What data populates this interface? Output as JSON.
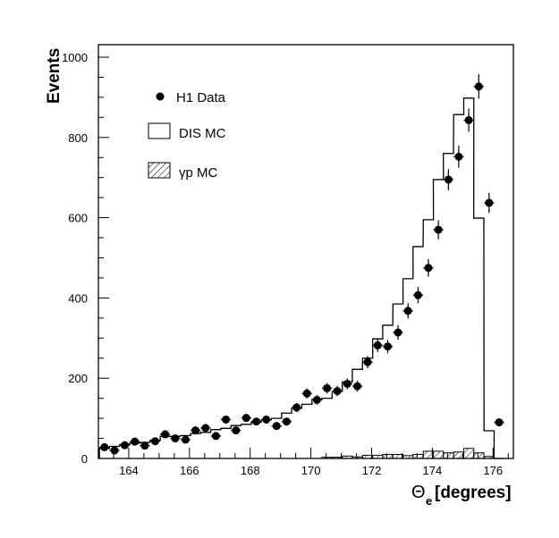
{
  "chart_data": {
    "type": "histogram",
    "xlabel": "Θ",
    "xlabel_sub": "e",
    "xlabel_unit": "[degrees]",
    "ylabel": "Events",
    "xlim": [
      163.0,
      176.67
    ],
    "ylim": [
      0,
      1000
    ],
    "xticks": [
      "164",
      "166",
      "168",
      "170",
      "172",
      "174",
      "176"
    ],
    "yticks": [
      "0",
      "200",
      "400",
      "600",
      "800",
      "1000"
    ],
    "bin_width": 0.333,
    "bin_centers": [
      163.2,
      163.53,
      163.87,
      164.2,
      164.53,
      164.87,
      165.2,
      165.53,
      165.87,
      166.2,
      166.53,
      166.87,
      167.2,
      167.53,
      167.87,
      168.2,
      168.53,
      168.87,
      169.2,
      169.53,
      169.87,
      170.2,
      170.53,
      170.87,
      171.2,
      171.53,
      171.87,
      172.2,
      172.53,
      172.87,
      173.2,
      173.53,
      173.87,
      174.2,
      174.53,
      174.87,
      175.2,
      175.53,
      175.87,
      176.2
    ],
    "series": [
      {
        "name": "H1 Data",
        "style": "points",
        "values": [
          28,
          20,
          33,
          42,
          32,
          43,
          60,
          50,
          47,
          70,
          76,
          56,
          97,
          70,
          101,
          92,
          97,
          81,
          92,
          127,
          162,
          146,
          175,
          168,
          186,
          180,
          240,
          282,
          279,
          314,
          368,
          407,
          475,
          570,
          695,
          752,
          843,
          927,
          637,
          90
        ]
      },
      {
        "name": "DIS MC",
        "style": "step",
        "values": [
          25,
          30,
          35,
          38,
          40,
          45,
          55,
          55,
          57,
          62,
          65,
          72,
          75,
          82,
          85,
          90,
          96,
          100,
          113,
          125,
          135,
          147,
          150,
          167,
          191,
          222,
          250,
          298,
          332,
          385,
          448,
          528,
          595,
          695,
          760,
          857,
          898,
          599,
          69,
          0
        ]
      },
      {
        "name": "γp MC",
        "style": "hatched",
        "values": [
          0,
          0,
          0,
          0,
          0,
          0,
          0,
          0,
          0,
          0,
          0,
          0,
          0,
          0,
          0,
          0,
          0,
          0,
          0,
          0,
          0,
          0,
          3,
          3,
          6,
          4,
          8,
          8,
          10,
          10,
          7,
          10,
          18,
          18,
          14,
          16,
          25,
          14,
          5,
          0
        ]
      }
    ],
    "legend": {
      "position": "top-left",
      "entries": [
        "H1 Data",
        "DIS MC",
        "γp MC"
      ]
    }
  }
}
